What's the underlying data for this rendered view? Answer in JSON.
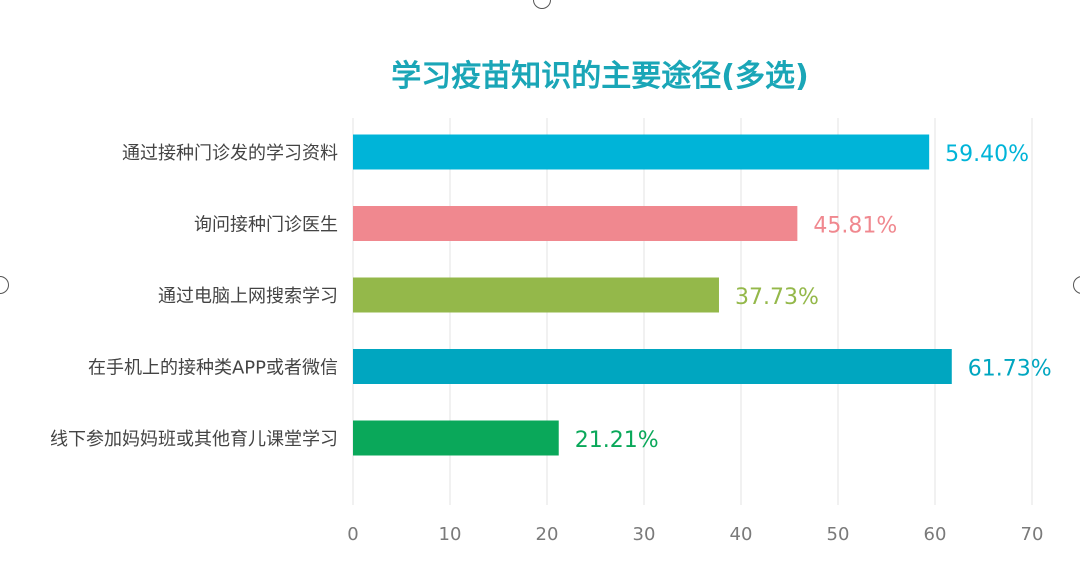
{
  "chart_data": {
    "type": "bar",
    "orientation": "horizontal",
    "title": "学习疫苗知识的主要途径(多选)",
    "categories": [
      "通过接种门诊发的学习资料",
      "询问接种门诊医生",
      "通过电脑上网搜索学习",
      "在手机上的接种类APP或者微信",
      "线下参加妈妈班或其他育儿课堂学习"
    ],
    "values": [
      59.4,
      45.81,
      37.73,
      61.73,
      21.21
    ],
    "value_labels": [
      "59.40%",
      "45.81%",
      "37.73%",
      "61.73%",
      "21.21%"
    ],
    "colors": [
      "#00b4d8",
      "#f0888f",
      "#94b84a",
      "#00a6c0",
      "#0aa85a"
    ],
    "xlim": [
      0,
      70
    ],
    "xticks": [
      "0",
      "10",
      "20",
      "30",
      "40",
      "50",
      "60",
      "70"
    ],
    "grid": true,
    "title_color": "#1aa6b7"
  }
}
